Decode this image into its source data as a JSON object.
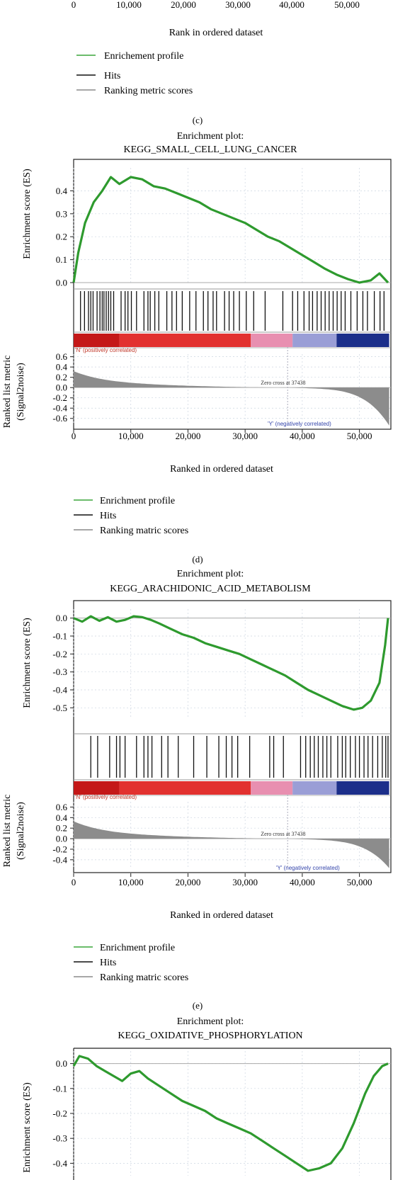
{
  "chart_data": [
    {
      "type": "line",
      "panel_label": "(c)",
      "xlabel": "Rank in ordered dataset",
      "xticks": [
        "0",
        "10,000",
        "20,000",
        "30,000",
        "40,000",
        "50,000"
      ],
      "legend": [
        "Enrichement profile",
        "Hits",
        "Ranking metric scores"
      ]
    },
    {
      "type": "line",
      "panel_label": "(d)",
      "title_line1": "Enrichment plot:",
      "title_line2": "KEGG_SMALL_CELL_LUNG_CANCER",
      "es_ylabel": "Enrichment score (ES)",
      "es_ylim": [
        0.0,
        0.5
      ],
      "es_yticks": [
        "0.0",
        "0.1",
        "0.2",
        "0.3",
        "0.4"
      ],
      "es_yvals": [
        0.0,
        0.1,
        0.2,
        0.3,
        0.4
      ],
      "es_profile": {
        "x": [
          0,
          800,
          2000,
          3500,
          5000,
          6500,
          8000,
          10000,
          12000,
          14000,
          16000,
          18000,
          20000,
          22000,
          24000,
          26000,
          28000,
          30000,
          32000,
          34000,
          36000,
          38000,
          40000,
          42000,
          44000,
          46000,
          48000,
          50000,
          52000,
          53500,
          55000
        ],
        "y": [
          0.0,
          0.13,
          0.26,
          0.35,
          0.4,
          0.46,
          0.43,
          0.46,
          0.45,
          0.42,
          0.41,
          0.39,
          0.37,
          0.35,
          0.32,
          0.3,
          0.28,
          0.26,
          0.23,
          0.2,
          0.18,
          0.15,
          0.12,
          0.09,
          0.06,
          0.035,
          0.015,
          0.0,
          0.01,
          0.04,
          0.0
        ]
      },
      "hits": [
        1200,
        1900,
        2600,
        3000,
        3400,
        4100,
        4600,
        5000,
        5300,
        5700,
        6100,
        6500,
        7000,
        8300,
        9000,
        9500,
        10100,
        11000,
        12300,
        13000,
        13400,
        14200,
        14900,
        16300,
        17200,
        18000,
        19000,
        20300,
        21400,
        22700,
        23500,
        24400,
        25000,
        26400,
        27200,
        28000,
        29000,
        30200,
        31500,
        33500,
        36600,
        38300,
        39200,
        40300,
        41200,
        41800,
        42600,
        43300,
        44000,
        44700,
        45400,
        46100,
        46800,
        47500,
        48500,
        49600,
        50600,
        51400,
        52600,
        53600,
        54300
      ],
      "pos_label": "'N' (positively correlated)",
      "neg_label": "'Y' (negatively correlated)",
      "zero_cross_label": "Zero cross at 37438",
      "zero_cross": 37438,
      "metric_ylabel_line1": "Ranked list metric",
      "metric_ylabel_line2": "(Signal2noise)",
      "metric_ylim": [
        -0.7,
        0.65
      ],
      "metric_yticks": [
        "0.6",
        "0.4",
        "0.2",
        "0.0",
        "-0.2",
        "-0.4",
        "-0.6"
      ],
      "metric_yvals": [
        0.6,
        0.4,
        0.2,
        0.0,
        -0.2,
        -0.4,
        -0.6
      ],
      "metric_max": 0.32,
      "metric_min": -0.68,
      "xlim": [
        0,
        55500
      ],
      "xlabel": "Ranked in ordered dataset",
      "xticks": [
        "0",
        "10,000",
        "20,000",
        "30,000",
        "40,000",
        "50,000"
      ],
      "xvals": [
        0,
        10000,
        20000,
        30000,
        40000,
        50000
      ],
      "legend": [
        "Enrichment profile",
        "Hits",
        "Ranking matric scores"
      ]
    },
    {
      "type": "line",
      "panel_label": "(e)",
      "title_line1": "Enrichment plot:",
      "title_line2": "KEGG_ARACHIDONIC_ACID_METABOLISM",
      "es_ylabel": "Enrichment score (ES)",
      "es_ylim": [
        -0.55,
        0.05
      ],
      "es_yticks": [
        "0.0",
        "-0.1",
        "-0.2",
        "-0.3",
        "-0.4",
        "-0.5"
      ],
      "es_yvals": [
        0.0,
        -0.1,
        -0.2,
        -0.3,
        -0.4,
        -0.5
      ],
      "es_profile": {
        "x": [
          0,
          1500,
          3000,
          4500,
          6000,
          7500,
          9000,
          10500,
          12000,
          13500,
          15000,
          17000,
          19000,
          21000,
          23000,
          25000,
          27000,
          29000,
          31000,
          33000,
          35000,
          37000,
          39000,
          41000,
          43000,
          45000,
          47000,
          49000,
          50500,
          52000,
          53500,
          54500,
          55000
        ],
        "y": [
          0.0,
          -0.02,
          0.01,
          -0.015,
          0.005,
          -0.02,
          -0.01,
          0.01,
          0.005,
          -0.01,
          -0.03,
          -0.06,
          -0.09,
          -0.11,
          -0.14,
          -0.16,
          -0.18,
          -0.2,
          -0.23,
          -0.26,
          -0.29,
          -0.32,
          -0.36,
          -0.4,
          -0.43,
          -0.46,
          -0.49,
          -0.51,
          -0.5,
          -0.46,
          -0.36,
          -0.15,
          0.0
        ]
      },
      "hits": [
        3000,
        4200,
        6300,
        7500,
        8100,
        9000,
        11000,
        12300,
        13000,
        13700,
        15400,
        16500,
        18300,
        21000,
        23300,
        25400,
        26700,
        27700,
        28700,
        30800,
        34300,
        35000,
        36700,
        39700,
        40600,
        41400,
        42100,
        42800,
        43600,
        44300,
        45000,
        46200,
        47000,
        47600,
        48400,
        49300,
        50000,
        50800,
        51500,
        52300,
        53200,
        54000,
        54600,
        55000
      ],
      "pos_label": "'N' (positively correlated)",
      "neg_label": "'Y' (negatively correlated)",
      "zero_cross_label": "Zero cross at 37438",
      "zero_cross": 37438,
      "metric_ylabel_line1": "Ranked list metric",
      "metric_ylabel_line2": "(Signal2noise)",
      "metric_ylim": [
        -0.55,
        0.7
      ],
      "metric_yticks": [
        "0.6",
        "0.4",
        "0.2",
        "0.0",
        "-0.2",
        "-0.4"
      ],
      "metric_yvals": [
        0.6,
        0.4,
        0.2,
        0.0,
        -0.2,
        -0.4
      ],
      "metric_max": 0.33,
      "metric_min": -0.5,
      "xlim": [
        0,
        55500
      ],
      "xlabel": "Ranked in ordered dataset",
      "xticks": [
        "0",
        "10,000",
        "20,000",
        "30,000",
        "40,000",
        "50,000"
      ],
      "xvals": [
        0,
        10000,
        20000,
        30000,
        40000,
        50000
      ],
      "legend": [
        "Enrichment profile",
        "Hits",
        "Ranking matric scores"
      ]
    },
    {
      "type": "line",
      "title_line1": "Enrichment plot:",
      "title_line2": "KEGG_OXIDATIVE_PHOSPHORYLATION",
      "es_ylabel": "Enrichment score (ES)",
      "es_ylim": [
        -0.45,
        0.05
      ],
      "es_yticks": [
        "0.0",
        "-0.1",
        "-0.2",
        "-0.3",
        "-0.4"
      ],
      "es_yvals": [
        0.0,
        -0.1,
        -0.2,
        -0.3,
        -0.4
      ],
      "es_profile": {
        "x": [
          0,
          1000,
          2500,
          4000,
          5500,
          7000,
          8500,
          10000,
          11500,
          13000,
          15000,
          17000,
          19000,
          21000,
          23000,
          25000,
          27000,
          29000,
          31000,
          33000,
          35000,
          37000,
          39000,
          41000,
          43000,
          45000,
          47000,
          49000,
          51000,
          52500,
          54000,
          55000
        ],
        "y": [
          -0.01,
          0.03,
          0.02,
          -0.01,
          -0.03,
          -0.05,
          -0.07,
          -0.04,
          -0.03,
          -0.06,
          -0.09,
          -0.12,
          -0.15,
          -0.17,
          -0.19,
          -0.22,
          -0.24,
          -0.26,
          -0.28,
          -0.31,
          -0.34,
          -0.37,
          -0.4,
          -0.43,
          -0.42,
          -0.4,
          -0.34,
          -0.24,
          -0.12,
          -0.05,
          -0.01,
          0.0
        ]
      },
      "xlim": [
        0,
        55500
      ]
    }
  ]
}
